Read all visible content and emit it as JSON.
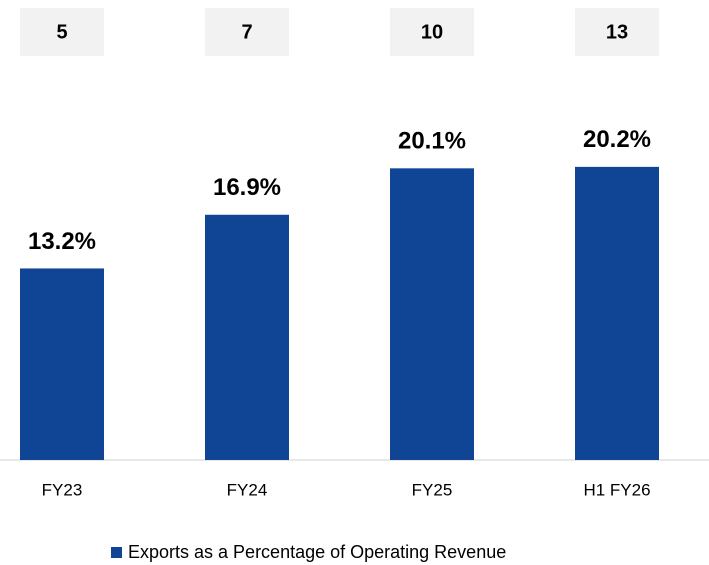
{
  "chart_data": {
    "type": "bar",
    "annotations": [
      5,
      7,
      10,
      13
    ],
    "categories": [
      "FY23",
      "FY24",
      "FY25",
      "H1 FY26"
    ],
    "series": [
      {
        "name": "Exports as a Percentage of Operating Revenue",
        "color": "#0f4594",
        "values": [
          13.2,
          16.9,
          20.1,
          20.2
        ],
        "value_labels": [
          "13.2%",
          "16.9%",
          "20.1%",
          "20.2%"
        ]
      }
    ],
    "ylim": [
      0,
      31.7
    ],
    "legend": "bottom"
  }
}
